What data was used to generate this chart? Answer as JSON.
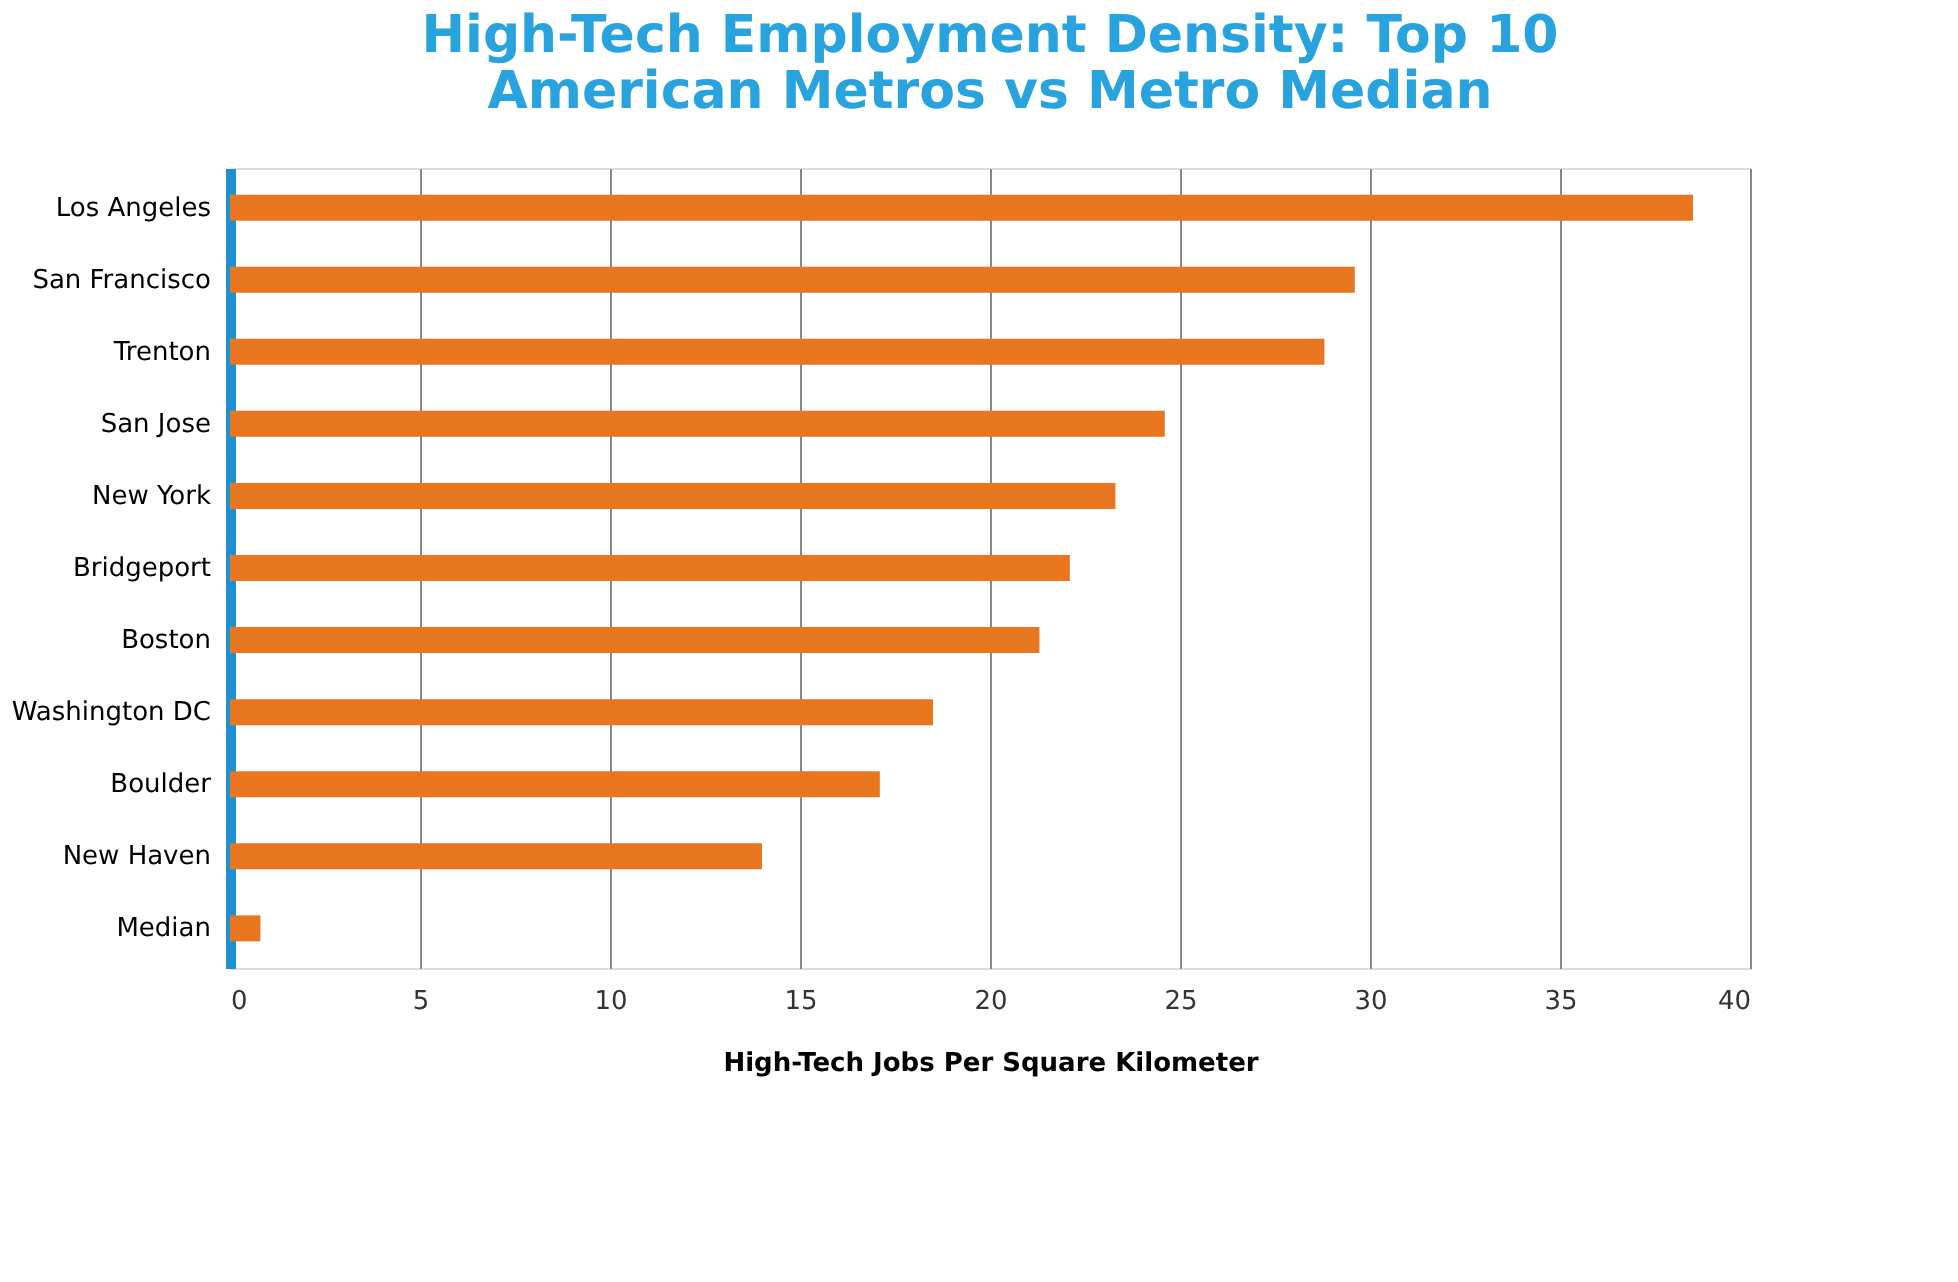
{
  "chart_data": {
    "type": "bar",
    "orientation": "horizontal",
    "title": [
      "High-Tech Employment Density: Top 10",
      "American Metros vs Metro Median"
    ],
    "xlabel": "High-Tech Jobs Per Square Kilometer",
    "categories": [
      "Los Angeles",
      "San Francisco",
      "Trenton",
      "San Jose",
      "New York",
      "Bridgeport",
      "Boston",
      "Washington DC",
      "Boulder",
      "New Haven",
      "Median"
    ],
    "values": [
      38.5,
      29.6,
      28.8,
      24.6,
      23.3,
      22.1,
      21.3,
      18.5,
      17.1,
      14.0,
      0.8
    ],
    "color": "#e8761e",
    "xlim": [
      0,
      40
    ],
    "xticks": [
      0,
      5,
      10,
      15,
      20,
      25,
      30,
      35,
      40
    ],
    "grid": "x"
  }
}
